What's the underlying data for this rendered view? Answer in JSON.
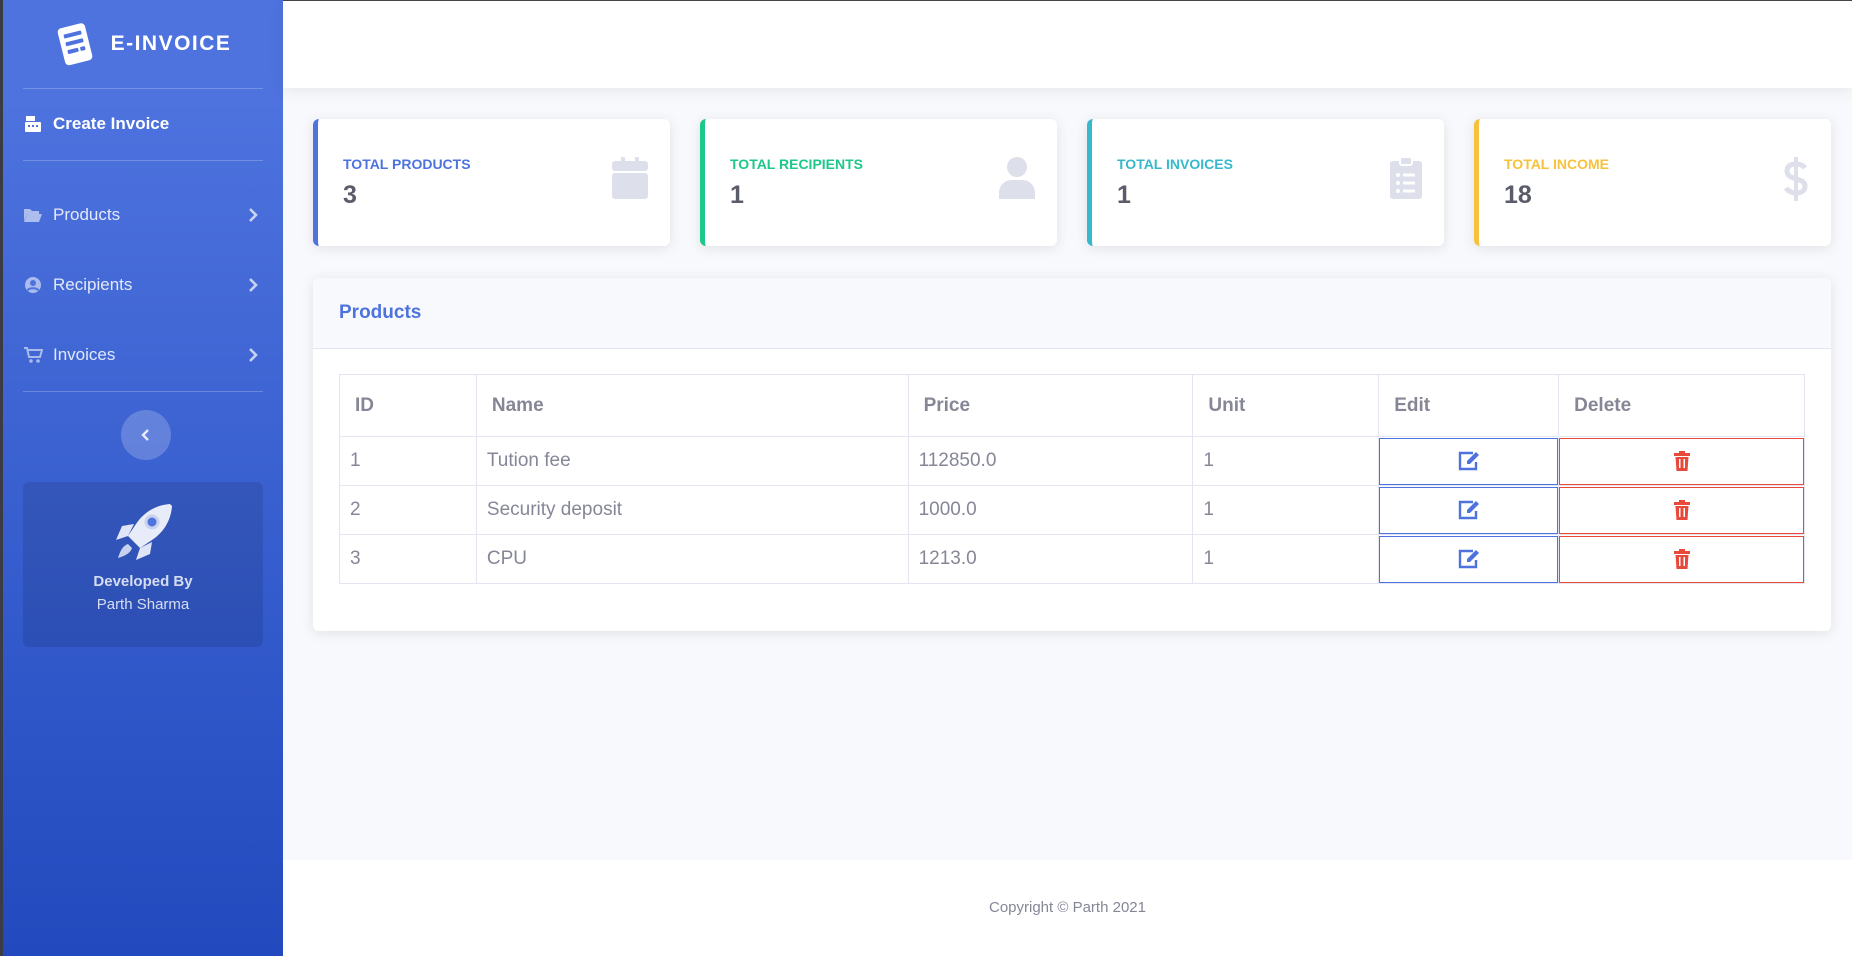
{
  "brand": {
    "name": "E-INVOICE",
    "icon": "invoice-icon"
  },
  "sidebar": {
    "create_invoice": "Create Invoice",
    "items": [
      {
        "label": "Products",
        "icon": "folder-open-icon"
      },
      {
        "label": "Recipients",
        "icon": "user-circle-icon"
      },
      {
        "label": "Invoices",
        "icon": "cart-icon"
      }
    ],
    "promo": {
      "developed_by": "Developed By",
      "author": "Parth Sharma"
    }
  },
  "cards": [
    {
      "label": "TOTAL PRODUCTS",
      "value": "3",
      "color": "#4e73df",
      "icon": "calendar-icon"
    },
    {
      "label": "TOTAL RECIPIENTS",
      "value": "1",
      "color": "#1cc88a",
      "icon": "user-icon"
    },
    {
      "label": "TOTAL INVOICES",
      "value": "1",
      "color": "#36b9cc",
      "icon": "clipboard-list-icon"
    },
    {
      "label": "TOTAL INCOME",
      "value": "18",
      "color": "#f6c23e",
      "icon": "dollar-icon"
    }
  ],
  "products": {
    "title": "Products",
    "columns": [
      "ID",
      "Name",
      "Price",
      "Unit",
      "Edit",
      "Delete"
    ],
    "rows": [
      {
        "id": "1",
        "name": "Tution fee",
        "price": "112850.0",
        "unit": "1"
      },
      {
        "id": "2",
        "name": "Security deposit",
        "price": "1000.0",
        "unit": "1"
      },
      {
        "id": "3",
        "name": "CPU",
        "price": "1213.0",
        "unit": "1"
      }
    ]
  },
  "footer": {
    "copyright": "Copyright © Parth 2021"
  },
  "colors": {
    "primary": "#4e73df",
    "danger": "#e74a3b",
    "muted": "#858796"
  }
}
